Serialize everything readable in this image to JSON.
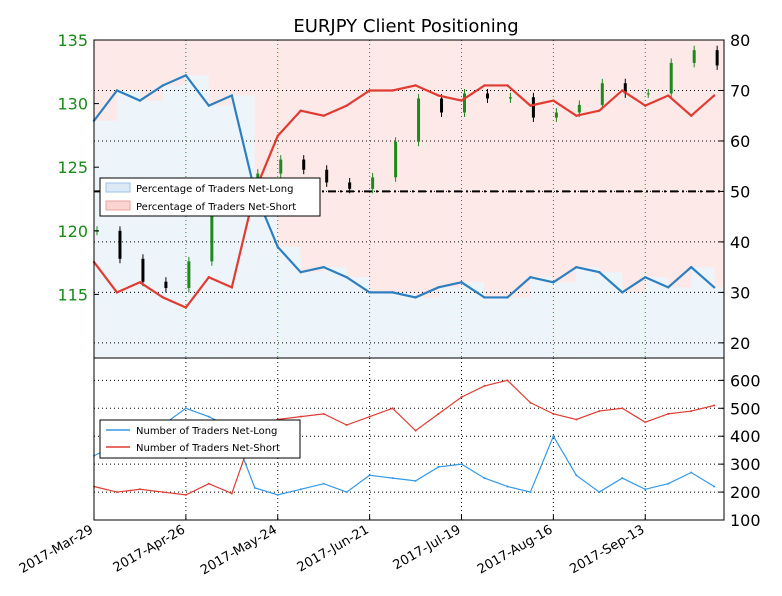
{
  "chart_data": [
    {
      "type": "line",
      "title": "EURJPY Client Positioning",
      "xlabel": "",
      "y_left_label": "",
      "y_right_label": "",
      "y_left_ticks": [
        "135",
        "130",
        "125",
        "120",
        "115"
      ],
      "y_left_ticks_values": [
        135,
        130,
        125,
        120,
        115
      ],
      "ylim_left": [
        110.0,
        135.0
      ],
      "y_right_ticks": [
        "80",
        "70",
        "60",
        "50",
        "40",
        "30",
        "20"
      ],
      "y_right_ticks_values": [
        80,
        70,
        60,
        50,
        40,
        30,
        20
      ],
      "ylim_right": [
        17.0,
        80.0
      ],
      "reference_line": 50,
      "x_tick_labels": [
        "2017-Mar-29",
        "2017-Apr-26",
        "2017-May-24",
        "2017-Jun-21",
        "2017-Jul-19",
        "2017-Aug-16",
        "2017-Sep-13"
      ],
      "x_days": [
        0,
        7,
        14,
        21,
        28,
        35,
        42,
        49,
        56,
        63,
        70,
        77,
        84,
        91,
        98,
        105,
        112,
        119,
        126,
        133,
        140,
        147,
        154,
        161,
        168,
        175,
        182,
        189
      ],
      "price_close": [
        120.0,
        117.8,
        116.0,
        115.5,
        117.6,
        122.0,
        123.5,
        124.5,
        125.6,
        124.8,
        123.8,
        123.3,
        124.2,
        127.0,
        130.4,
        129.3,
        130.8,
        130.4,
        130.5,
        128.9,
        129.3,
        129.9,
        131.6,
        130.8,
        130.8,
        133.2,
        134.2,
        133.0
      ],
      "legend_position": "left",
      "series": [
        {
          "name": "Percentage of Traders Net-Long",
          "color": "#2e7fc0",
          "values": [
            64.0,
            70.0,
            68.0,
            71.0,
            73.0,
            67.0,
            69.0,
            50.0,
            39.0,
            34.0,
            35.0,
            33.0,
            30.0,
            30.0,
            29.0,
            31.0,
            32.0,
            29.0,
            29.0,
            33.0,
            32.0,
            35.0,
            34.0,
            30.0,
            33.0,
            31.0,
            35.0,
            31.0
          ]
        },
        {
          "name": "Percentage of Traders Net-Short",
          "color": "#e03c31",
          "values": [
            36.0,
            30.0,
            32.0,
            29.0,
            27.0,
            33.0,
            31.0,
            50.0,
            61.0,
            66.0,
            65.0,
            67.0,
            70.0,
            70.0,
            71.0,
            69.0,
            68.0,
            71.0,
            71.0,
            67.0,
            68.0,
            65.0,
            66.0,
            70.0,
            67.0,
            69.0,
            65.0,
            69.0
          ]
        }
      ]
    },
    {
      "type": "line",
      "title": "",
      "xlabel": "",
      "ylabel": "",
      "y_right_ticks": [
        "600",
        "500",
        "400",
        "300",
        "200",
        "100"
      ],
      "y_right_ticks_values": [
        600,
        500,
        400,
        300,
        200,
        100
      ],
      "ylim": [
        100,
        680
      ],
      "legend_position": "left",
      "x_days": [
        0,
        7,
        14,
        21,
        28,
        35,
        42,
        49,
        56,
        63,
        70,
        77,
        84,
        91,
        98,
        105,
        112,
        119,
        126,
        133,
        140,
        147,
        154,
        161,
        168,
        175,
        182,
        189
      ],
      "series": [
        {
          "name": "Number of Traders Net-Long",
          "color": "#3399e6",
          "values": [
            330,
            370,
            400,
            440,
            500,
            470,
            430,
            215,
            190,
            210,
            230,
            200,
            260,
            250,
            240,
            290,
            300,
            250,
            220,
            200,
            400,
            260,
            200,
            250,
            210,
            230,
            270,
            220
          ]
        },
        {
          "name": "Number of Traders Net-Short",
          "color": "#e03c31",
          "values": [
            220,
            200,
            210,
            200,
            190,
            230,
            195,
            430,
            460,
            470,
            480,
            440,
            470,
            500,
            420,
            480,
            540,
            580,
            600,
            520,
            480,
            460,
            490,
            500,
            450,
            480,
            490,
            510
          ]
        }
      ]
    }
  ]
}
